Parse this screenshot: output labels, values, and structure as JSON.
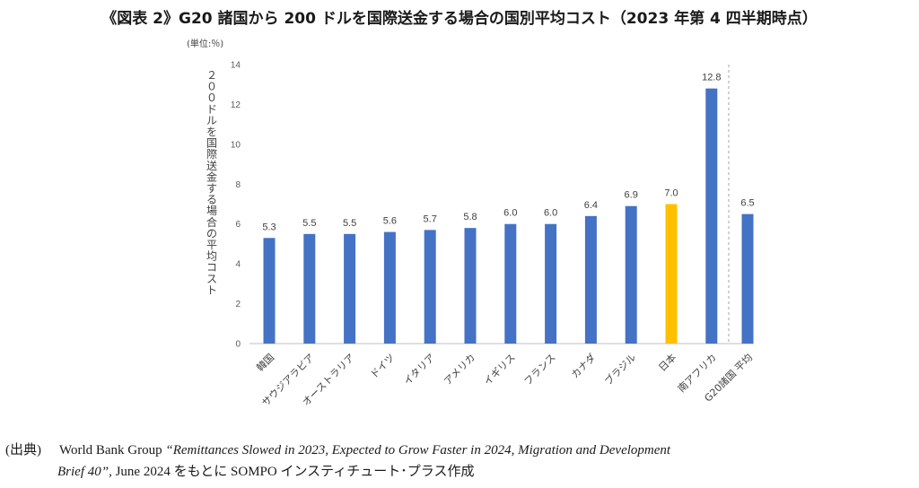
{
  "title": "《図表 2》G20 諸国から 200 ドルを国際送金する場合の国別平均コスト（2023 年第 4 四半期時点）",
  "source": {
    "prefix": "(出典)",
    "publisher": "World Bank Group",
    "title_part1": "“Remittances Slowed in 2023, Expected to Grow Faster in 2024, Migration and Development",
    "title_part2": "Brief 40”",
    "suffix": ", June 2024 をもとに SOMPO インスティチュート･プラス作成"
  },
  "chart_data": {
    "type": "bar",
    "unit_label": "(単位:％)",
    "ylabel": "２００ドルを国際送金する場合の平均コスト",
    "ylim": [
      0,
      14
    ],
    "yticks": [
      0,
      2,
      4,
      6,
      8,
      10,
      12,
      14
    ],
    "grid": false,
    "categories": [
      "韓国",
      "サウジアラビア",
      "オーストラリア",
      "ドイツ",
      "イタリア",
      "アメリカ",
      "イギリス",
      "フランス",
      "カナダ",
      "ブラジル",
      "日本",
      "南アフリカ",
      "G20諸国 平均"
    ],
    "values": [
      5.3,
      5.5,
      5.5,
      5.6,
      5.7,
      5.8,
      6.0,
      6.0,
      6.4,
      6.9,
      7.0,
      12.8,
      6.5
    ],
    "value_labels": [
      "5.3",
      "5.5",
      "5.5",
      "5.6",
      "5.7",
      "5.8",
      "6.0",
      "6.0",
      "6.4",
      "6.9",
      "7.0",
      "12.8",
      "6.5"
    ],
    "colors": {
      "default": "#4472C4",
      "highlight": "#FFC000",
      "highlight_category": "日本"
    },
    "separator_before_last": true
  }
}
